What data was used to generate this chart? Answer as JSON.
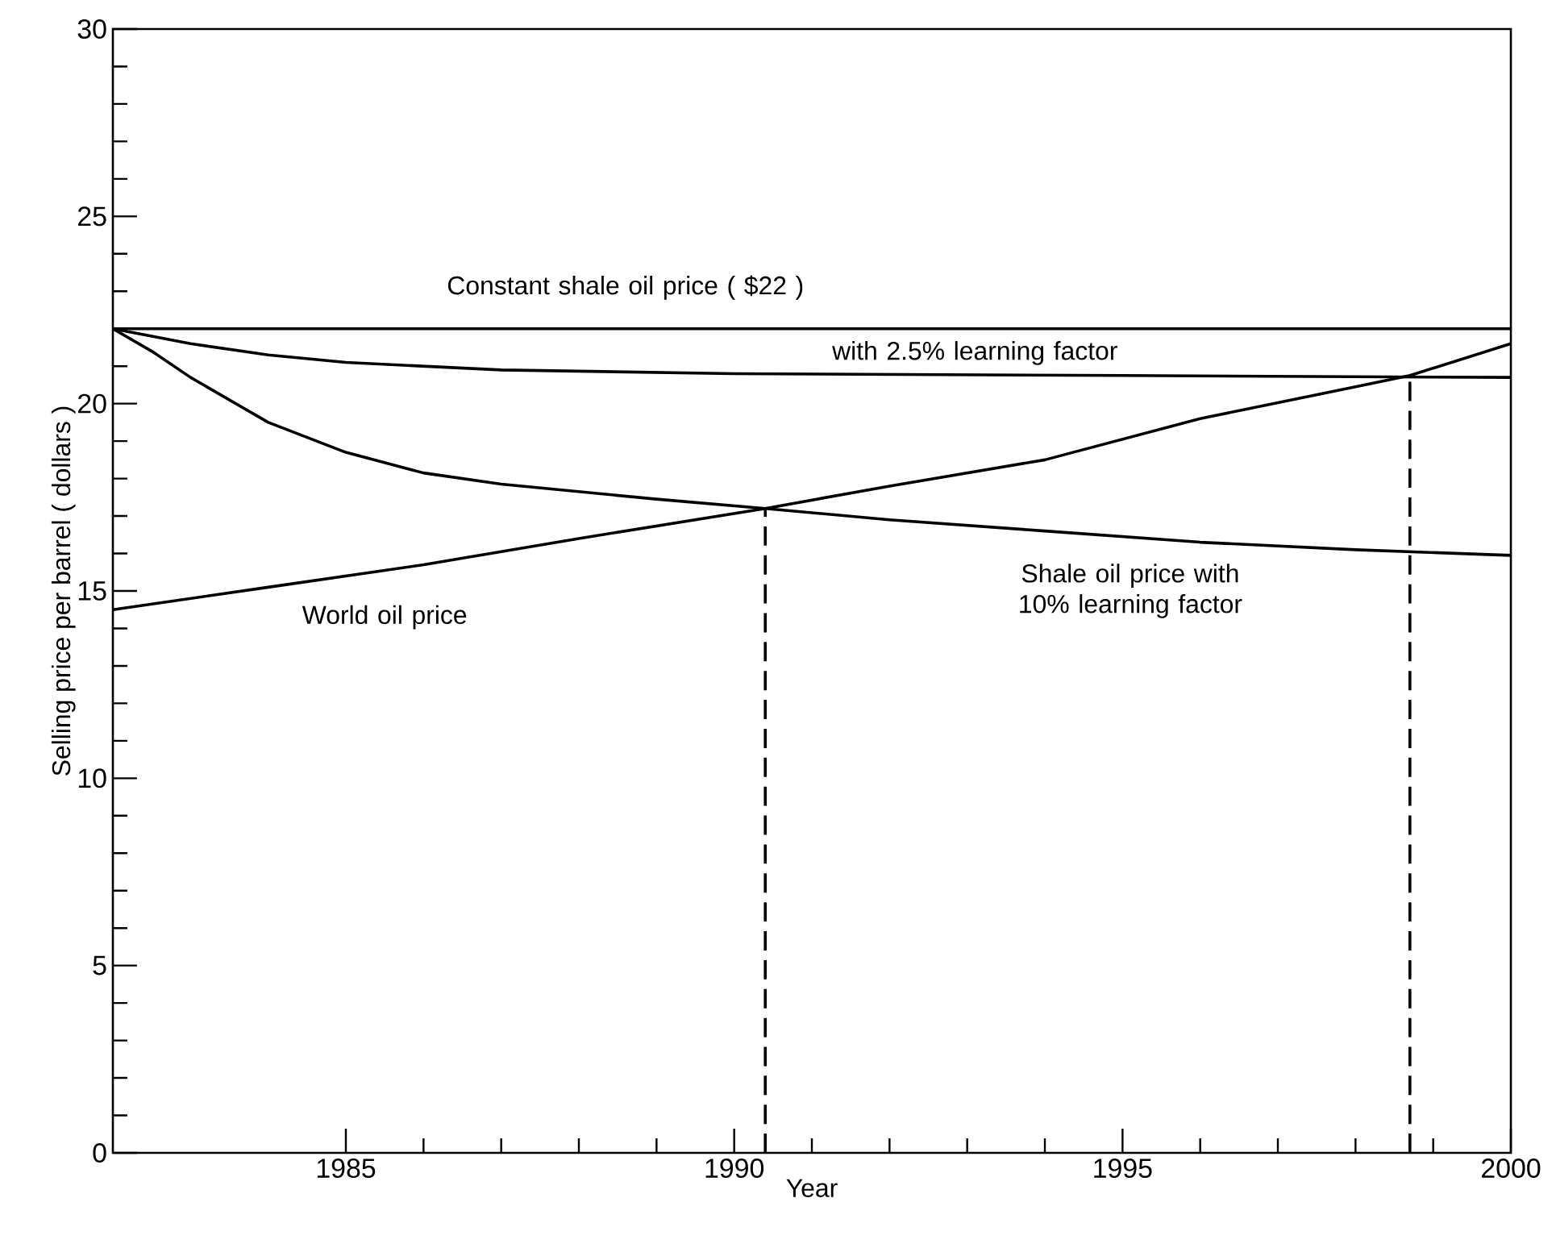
{
  "chart_data": {
    "type": "line",
    "xlabel": "Year",
    "ylabel": "Selling price per barrel ( dollars )",
    "xlim": [
      1982,
      2000
    ],
    "ylim": [
      0,
      30
    ],
    "xticks": [
      1985,
      1990,
      1995,
      2000
    ],
    "yticks": [
      0,
      5,
      10,
      15,
      20,
      25,
      30
    ],
    "marker": "none",
    "line_style": "solid",
    "grid": false,
    "legend": false,
    "series": [
      {
        "name": "Constant shale oil price ( $22 )",
        "color": "#000000",
        "x": [
          1982,
          2000
        ],
        "values": [
          22,
          22
        ]
      },
      {
        "name": "with 2.5% learning factor",
        "color": "#000000",
        "x": [
          1982,
          1983,
          1984,
          1985,
          1987,
          1990,
          1995,
          2000
        ],
        "values": [
          22,
          21.6,
          21.3,
          21.1,
          20.9,
          20.8,
          20.75,
          20.7
        ]
      },
      {
        "name": "Shale oil price with 10% learning factor",
        "color": "#000000",
        "x": [
          1982,
          1982.5,
          1983,
          1984,
          1985,
          1986,
          1987,
          1989,
          1990.4,
          1992,
          1994,
          1996,
          1998,
          2000
        ],
        "values": [
          22,
          21.4,
          20.7,
          19.5,
          18.7,
          18.15,
          17.85,
          17.45,
          17.2,
          16.9,
          16.6,
          16.3,
          16.1,
          15.95
        ]
      },
      {
        "name": "World oil price",
        "color": "#000000",
        "x": [
          1982,
          1984,
          1986,
          1988,
          1990.4,
          1992,
          1994,
          1996,
          1998,
          1998.7,
          2000
        ],
        "values": [
          14.5,
          15.1,
          15.7,
          16.4,
          17.2,
          17.8,
          18.5,
          19.6,
          20.45,
          20.75,
          21.6
        ]
      },
      {
        "color": "#000000",
        "line_style": "dashed",
        "x": [
          1990.4,
          1990.4
        ],
        "values": [
          0,
          17.2
        ]
      },
      {
        "color": "#000000",
        "line_style": "dashed",
        "x": [
          1998.7,
          1998.7
        ],
        "values": [
          0,
          20.75
        ]
      }
    ]
  }
}
